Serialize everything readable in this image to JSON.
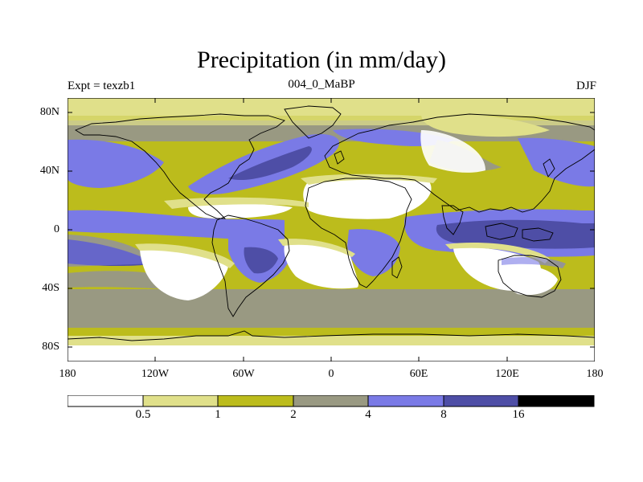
{
  "title": "Precipitation (in mm/day)",
  "subtitle_left": "Expt = texzb1",
  "subtitle_center": "004_0_MaBP",
  "subtitle_right": "DJF",
  "y_ticks": [
    "80N",
    "40N",
    "0",
    "40S",
    "80S"
  ],
  "x_ticks": [
    "180",
    "120W",
    "60W",
    "0",
    "60E",
    "120E",
    "180"
  ],
  "colorbar": {
    "colors": [
      "#ffffff",
      "#e0e08a",
      "#bcbc1c",
      "#999982",
      "#7a7ae6",
      "#4e4ea6",
      "#000000"
    ],
    "labels": [
      "0.5",
      "1",
      "2",
      "4",
      "8",
      "16"
    ]
  }
}
